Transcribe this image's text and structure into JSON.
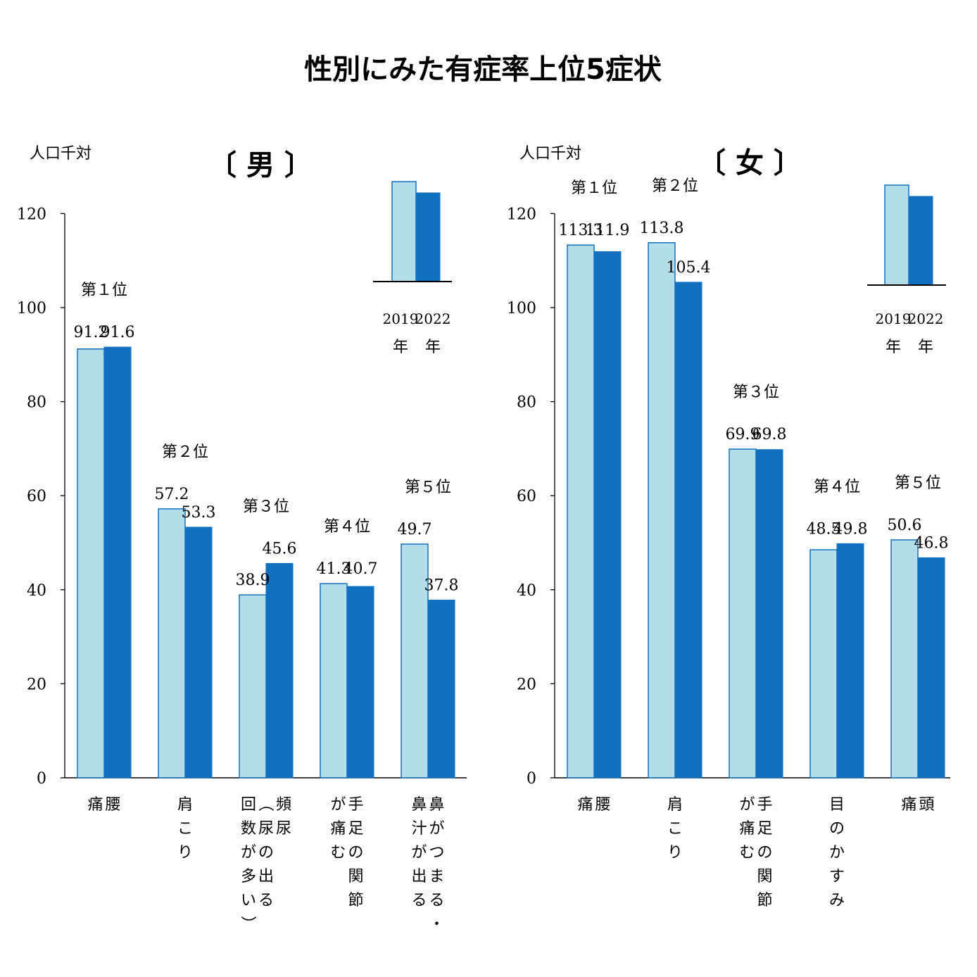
{
  "title": "性別にみた有症率上位5症状",
  "unit_label": "人口千対",
  "colors": {
    "y2019": "#b3dde8",
    "y2022": "#1270c0",
    "outline": "#1270c0"
  },
  "legend": {
    "years": [
      "2019",
      "2022"
    ],
    "year_suffix": "年"
  },
  "chart_data": [
    {
      "type": "bar",
      "panel": "〔 男 〕",
      "ylabel": "人口千対",
      "ylim": [
        0,
        120
      ],
      "yticks": [
        0,
        20,
        40,
        60,
        80,
        100,
        120
      ],
      "series_names": [
        "2019",
        "2022"
      ],
      "categories": [
        {
          "rank": "第１位",
          "name": "腰痛",
          "lines": [
            "腰",
            "痛"
          ],
          "values": [
            91.2,
            91.6
          ]
        },
        {
          "rank": "第２位",
          "name": "肩こり",
          "lines": [
            "肩こり"
          ],
          "values": [
            57.2,
            53.3
          ]
        },
        {
          "rank": "第３位",
          "name": "頻尿（尿の出る回数が多い）",
          "lines": [
            "頻尿",
            "（尿の出る",
            "回数が多い）"
          ],
          "values": [
            38.9,
            45.6
          ]
        },
        {
          "rank": "第４位",
          "name": "手足の関節が痛む",
          "lines": [
            "手足の関節",
            "が痛む"
          ],
          "values": [
            41.3,
            40.7
          ]
        },
        {
          "rank": "第５位",
          "name": "鼻がつまる・鼻汁が出る",
          "lines": [
            "鼻がつまる・",
            "鼻汁が出る"
          ],
          "values": [
            49.7,
            37.8
          ]
        }
      ]
    },
    {
      "type": "bar",
      "panel": "〔 女 〕",
      "ylabel": "人口千対",
      "ylim": [
        0,
        120
      ],
      "yticks": [
        0,
        20,
        40,
        60,
        80,
        100,
        120
      ],
      "series_names": [
        "2019",
        "2022"
      ],
      "categories": [
        {
          "rank": "第１位",
          "name": "腰痛",
          "lines": [
            "腰",
            "痛"
          ],
          "values": [
            113.3,
            111.9
          ]
        },
        {
          "rank": "第２位",
          "name": "肩こり",
          "lines": [
            "肩こり"
          ],
          "values": [
            113.8,
            105.4
          ]
        },
        {
          "rank": "第３位",
          "name": "手足の関節が痛む",
          "lines": [
            "手足の関節",
            "が痛む"
          ],
          "values": [
            69.9,
            69.8
          ]
        },
        {
          "rank": "第４位",
          "name": "目のかすみ",
          "lines": [
            "目のかすみ"
          ],
          "values": [
            48.5,
            49.8
          ]
        },
        {
          "rank": "第５位",
          "name": "頭痛",
          "lines": [
            "頭",
            "痛"
          ],
          "values": [
            50.6,
            46.8
          ]
        }
      ]
    }
  ]
}
